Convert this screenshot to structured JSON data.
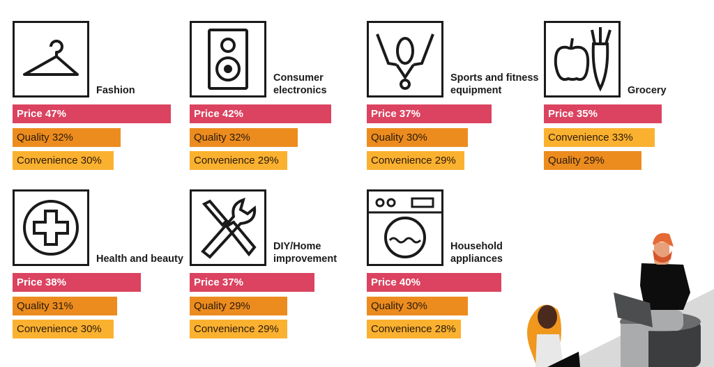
{
  "colors": {
    "price": "#db4360",
    "quality": "#ec8c1f",
    "convenience": "#fbb130",
    "text_dark": "#2a1a0a"
  },
  "chart_data": {
    "type": "bar",
    "title": "",
    "unit": "%",
    "panels": [
      {
        "category": "Fashion",
        "icon": "hanger-icon",
        "bars": [
          {
            "label": "Price",
            "value": 47
          },
          {
            "label": "Quality",
            "value": 32
          },
          {
            "label": "Convenience",
            "value": 30
          }
        ]
      },
      {
        "category": "Consumer electronics",
        "icon": "speaker-icon",
        "bars": [
          {
            "label": "Price",
            "value": 42
          },
          {
            "label": "Quality",
            "value": 32
          },
          {
            "label": "Convenience",
            "value": 29
          }
        ]
      },
      {
        "category": "Sports and fitness equipment",
        "icon": "athlete-icon",
        "bars": [
          {
            "label": "Price",
            "value": 37
          },
          {
            "label": "Quality",
            "value": 30
          },
          {
            "label": "Convenience",
            "value": 29
          }
        ]
      },
      {
        "category": "Grocery",
        "icon": "apple-carrot-icon",
        "bars": [
          {
            "label": "Price",
            "value": 35
          },
          {
            "label": "Convenience",
            "value": 33
          },
          {
            "label": "Quality",
            "value": 29
          }
        ]
      },
      {
        "category": "Health and beauty",
        "icon": "medical-cross-icon",
        "bars": [
          {
            "label": "Price",
            "value": 38
          },
          {
            "label": "Quality",
            "value": 31
          },
          {
            "label": "Convenience",
            "value": 30
          }
        ]
      },
      {
        "category": "DIY/Home improvement",
        "icon": "tools-icon",
        "bars": [
          {
            "label": "Price",
            "value": 37
          },
          {
            "label": "Quality",
            "value": 29
          },
          {
            "label": "Convenience",
            "value": 29
          }
        ]
      },
      {
        "category": "Household appliances",
        "icon": "washing-machine-icon",
        "bars": [
          {
            "label": "Price",
            "value": 40
          },
          {
            "label": "Quality",
            "value": 30
          },
          {
            "label": "Convenience",
            "value": 28
          }
        ]
      }
    ]
  }
}
